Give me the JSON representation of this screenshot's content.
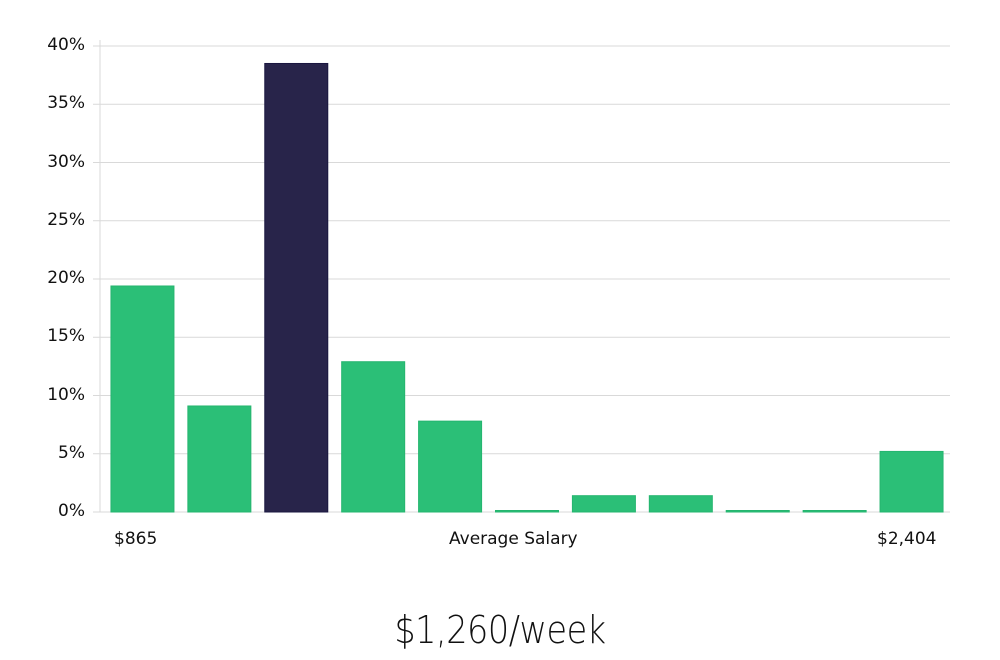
{
  "chart_data": {
    "type": "bar",
    "title": "",
    "xlabel": "Average Salary",
    "ylabel": "",
    "x_range_labels": {
      "min": "$865",
      "max": "$2,404"
    },
    "categories": [
      "bin1",
      "bin2",
      "bin3",
      "bin4",
      "bin5",
      "bin6",
      "bin7",
      "bin8",
      "bin9",
      "bin10",
      "bin11"
    ],
    "values": [
      19.4,
      9.1,
      38.5,
      12.9,
      7.8,
      0.1,
      1.4,
      1.4,
      0.1,
      0.1,
      5.2
    ],
    "highlight_index": 2,
    "yticks": [
      "0%",
      "5%",
      "10%",
      "15%",
      "20%",
      "25%",
      "30%",
      "35%",
      "40%"
    ],
    "ylim": [
      0,
      40
    ],
    "grid": true,
    "legend": null,
    "colors": {
      "default": "#2bbf77",
      "highlight": "#28244a",
      "grid": "#d9d9d9"
    }
  },
  "headline": "$1,260/week",
  "x_axis": {
    "left": "$865",
    "center": "Average Salary",
    "right": "$2,404"
  }
}
